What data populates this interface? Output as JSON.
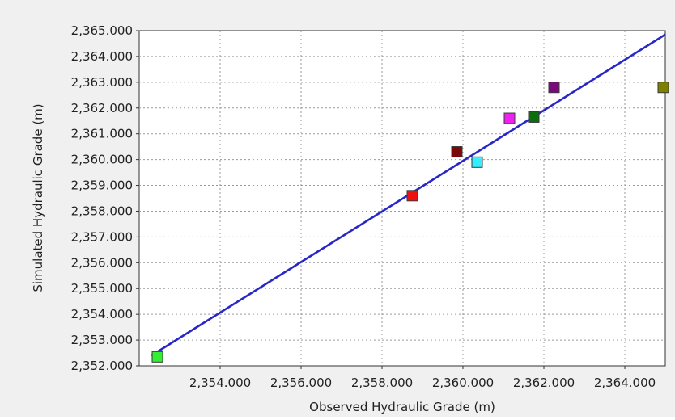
{
  "chart_data": {
    "type": "scatter",
    "title": "",
    "xlabel": "Observed Hydraulic Grade (m)",
    "ylabel": "Simulated Hydraulic Grade (m)",
    "xlim": [
      2352.0,
      2365.0
    ],
    "ylim": [
      2352.0,
      2365.0
    ],
    "x_ticks": [
      2354,
      2356,
      2358,
      2360,
      2362,
      2364
    ],
    "x_tick_labels": [
      "2,354.000",
      "2,356.000",
      "2,358.000",
      "2,360.000",
      "2,362.000",
      "2,364.000"
    ],
    "y_ticks": [
      2352,
      2353,
      2354,
      2355,
      2356,
      2357,
      2358,
      2359,
      2360,
      2361,
      2362,
      2363,
      2364,
      2365
    ],
    "y_tick_labels": [
      "2,352.000",
      "2,353.000",
      "2,354.000",
      "2,355.000",
      "2,356.000",
      "2,357.000",
      "2,358.000",
      "2,359.000",
      "2,360.000",
      "2,361.000",
      "2,362.000",
      "2,363.000",
      "2,364.000",
      "2,365.000"
    ],
    "grid": true,
    "legend": "none",
    "fit_line": {
      "color": "#2828c8",
      "x": [
        2352.3,
        2365.0
      ],
      "y": [
        2352.4,
        2364.85
      ]
    },
    "points": [
      {
        "x": 2352.45,
        "y": 2352.35,
        "color": "#33ee33"
      },
      {
        "x": 2358.75,
        "y": 2358.6,
        "color": "#ee1111"
      },
      {
        "x": 2359.85,
        "y": 2360.3,
        "color": "#7a0a0a"
      },
      {
        "x": 2360.35,
        "y": 2359.9,
        "color": "#33eeff"
      },
      {
        "x": 2361.15,
        "y": 2361.6,
        "color": "#ee22ee"
      },
      {
        "x": 2361.75,
        "y": 2361.65,
        "color": "#0c6e0c"
      },
      {
        "x": 2362.25,
        "y": 2362.8,
        "color": "#7a0a7a"
      },
      {
        "x": 2364.95,
        "y": 2362.8,
        "color": "#808000"
      }
    ]
  }
}
